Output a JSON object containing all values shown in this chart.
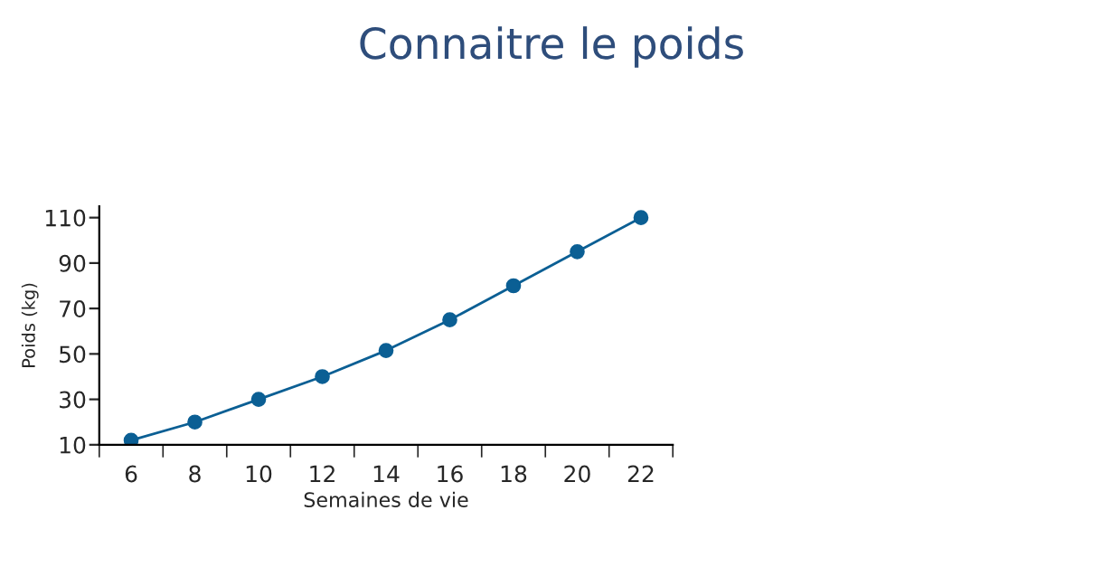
{
  "chart_data": {
    "type": "line",
    "title": "Connaitre le poids",
    "xlabel": "Semaines de vie",
    "ylabel": "Poids (kg)",
    "categories": [
      "6",
      "8",
      "10",
      "12",
      "14",
      "16",
      "18",
      "20",
      "22"
    ],
    "series": [
      {
        "color": "#0b5f94",
        "values": [
          12,
          20,
          30,
          40,
          51.5,
          65,
          80,
          95,
          110
        ]
      }
    ],
    "ylim": [
      10,
      115
    ],
    "yticks": [
      10,
      30,
      50,
      70,
      90,
      110
    ],
    "marker": "circle",
    "line_style": "solid",
    "grid": false,
    "legend": false
  }
}
